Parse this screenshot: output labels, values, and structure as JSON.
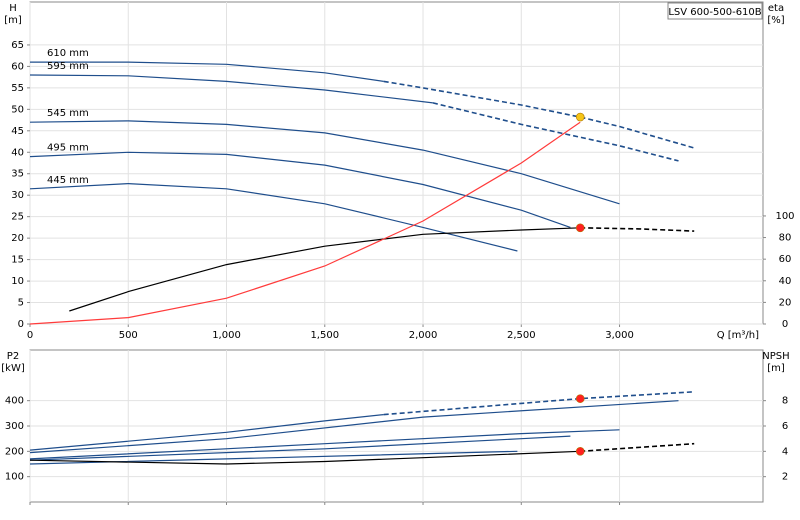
{
  "chart_data": [
    {
      "type": "line",
      "title": "LSV 600-500-610B",
      "ylabel": "H",
      "ylabel_unit": "[m]",
      "y2label": "eta",
      "y2label_unit": "[%]",
      "xlabel": "Q [m³/h]",
      "xlim": [
        0,
        3730
      ],
      "ylim": [
        0,
        75
      ],
      "y2lim": [
        0,
        298
      ],
      "grid": true,
      "xtick_labels": true,
      "xticks": [
        0,
        500,
        {
          "value": 1000,
          "label": "1,000"
        },
        {
          "value": 1500,
          "label": "1,500"
        },
        {
          "value": 2000,
          "label": "2,000"
        },
        {
          "value": 2500,
          "label": "2,500"
        },
        {
          "value": 3000,
          "label": "3,000"
        }
      ],
      "yticks": [
        0,
        5,
        10,
        15,
        20,
        25,
        30,
        35,
        40,
        45,
        50,
        55,
        60,
        65
      ],
      "y2ticks": [
        0,
        20,
        40,
        60,
        80,
        100
      ],
      "series": [
        {
          "name": "610 mm",
          "color": "#1f4e8c",
          "x": [
            0,
            500,
            1000,
            1500,
            1800
          ],
          "values": [
            61,
            61,
            60.5,
            58.5,
            56.5
          ]
        },
        {
          "color": "#1f4e8c",
          "dash": true,
          "x": [
            1800,
            2000,
            2500,
            2800,
            3000,
            3380
          ],
          "values": [
            56.5,
            55,
            51,
            48.2,
            46,
            41
          ]
        },
        {
          "name": "595 mm",
          "color": "#1f4e8c",
          "x": [
            0,
            500,
            1000,
            1500,
            2050
          ],
          "values": [
            58,
            57.8,
            56.5,
            54.5,
            51.5
          ]
        },
        {
          "color": "#1f4e8c",
          "dash": true,
          "x": [
            2050,
            2500,
            3000,
            3300
          ],
          "values": [
            51.5,
            46.5,
            41.5,
            38
          ]
        },
        {
          "name": "545 mm",
          "color": "#1f4e8c",
          "x": [
            0,
            500,
            1000,
            1500,
            2000,
            2500,
            3000
          ],
          "values": [
            47,
            47.3,
            46.5,
            44.5,
            40.5,
            35,
            28
          ]
        },
        {
          "name": "495 mm",
          "color": "#1f4e8c",
          "x": [
            0,
            500,
            1000,
            1500,
            2000,
            2500,
            2750
          ],
          "values": [
            39,
            40,
            39.5,
            37,
            32.5,
            26.5,
            22.5
          ]
        },
        {
          "name": "445 mm",
          "color": "#1f4e8c",
          "x": [
            0,
            500,
            1000,
            1500,
            2000,
            2480
          ],
          "values": [
            31.5,
            32.7,
            31.5,
            28,
            22.5,
            17
          ]
        },
        {
          "color": "#000000",
          "axis": "y2",
          "x": [
            200,
            500,
            1000,
            1500,
            2000,
            2500,
            2800
          ],
          "values": [
            12,
            30,
            55,
            72,
            83,
            87,
            89
          ]
        },
        {
          "color": "#000000",
          "axis": "y2",
          "dash": true,
          "x": [
            2800,
            3100,
            3380
          ],
          "values": [
            89,
            88,
            86
          ]
        },
        {
          "color": "#ff3b3b",
          "x": [
            0,
            500,
            1000,
            1500,
            2000,
            2500,
            2800
          ],
          "values": [
            0,
            1.5,
            6,
            13.5,
            24,
            37.5,
            47
          ]
        }
      ],
      "points": [
        {
          "x": 2800,
          "y": 48.2,
          "color": "#f5c518"
        },
        {
          "x": 2800,
          "y": 89,
          "axis": "y2",
          "color": "#ff2020"
        }
      ]
    },
    {
      "type": "line",
      "ylabel": "P2",
      "ylabel_unit": "[kW]",
      "y2label": "NPSH",
      "y2label_unit": "[m]",
      "xlim": [
        0,
        3730
      ],
      "ylim": [
        0,
        600
      ],
      "y2lim": [
        0,
        12
      ],
      "grid": true,
      "xtick_labels": false,
      "xticks": [
        0,
        500,
        1000,
        1500,
        2000,
        2500,
        3000
      ],
      "yticks": [
        100,
        200,
        300,
        400
      ],
      "y2ticks": [
        2,
        4,
        6,
        8
      ],
      "series": [
        {
          "color": "#1f4e8c",
          "x": [
            0,
            1000,
            1500,
            1800
          ],
          "values": [
            205,
            275,
            320,
            345
          ]
        },
        {
          "color": "#1f4e8c",
          "dash": true,
          "x": [
            1800,
            2800,
            3380
          ],
          "values": [
            345,
            408,
            435
          ]
        },
        {
          "color": "#1f4e8c",
          "x": [
            0,
            1000,
            2000,
            3300
          ],
          "values": [
            195,
            250,
            335,
            400
          ]
        },
        {
          "color": "#1f4e8c",
          "x": [
            0,
            1500,
            2500,
            3000
          ],
          "values": [
            170,
            230,
            270,
            285
          ]
        },
        {
          "color": "#1f4e8c",
          "x": [
            0,
            1500,
            2500,
            2750
          ],
          "values": [
            165,
            210,
            250,
            260
          ]
        },
        {
          "color": "#1f4e8c",
          "x": [
            0,
            1000,
            2480
          ],
          "values": [
            150,
            170,
            200
          ]
        },
        {
          "color": "#000000",
          "axis": "y2",
          "x": [
            0,
            1000,
            1500,
            2000,
            2800
          ],
          "values": [
            3.3,
            3.0,
            3.2,
            3.5,
            4.0
          ]
        },
        {
          "color": "#000000",
          "axis": "y2",
          "dash": true,
          "x": [
            2800,
            3380
          ],
          "values": [
            4.0,
            4.6
          ]
        }
      ],
      "points": [
        {
          "x": 2800,
          "y": 408,
          "color": "#ff2020"
        },
        {
          "x": 2800,
          "y": 4.0,
          "axis": "y2",
          "color": "#ff2020"
        }
      ]
    }
  ]
}
